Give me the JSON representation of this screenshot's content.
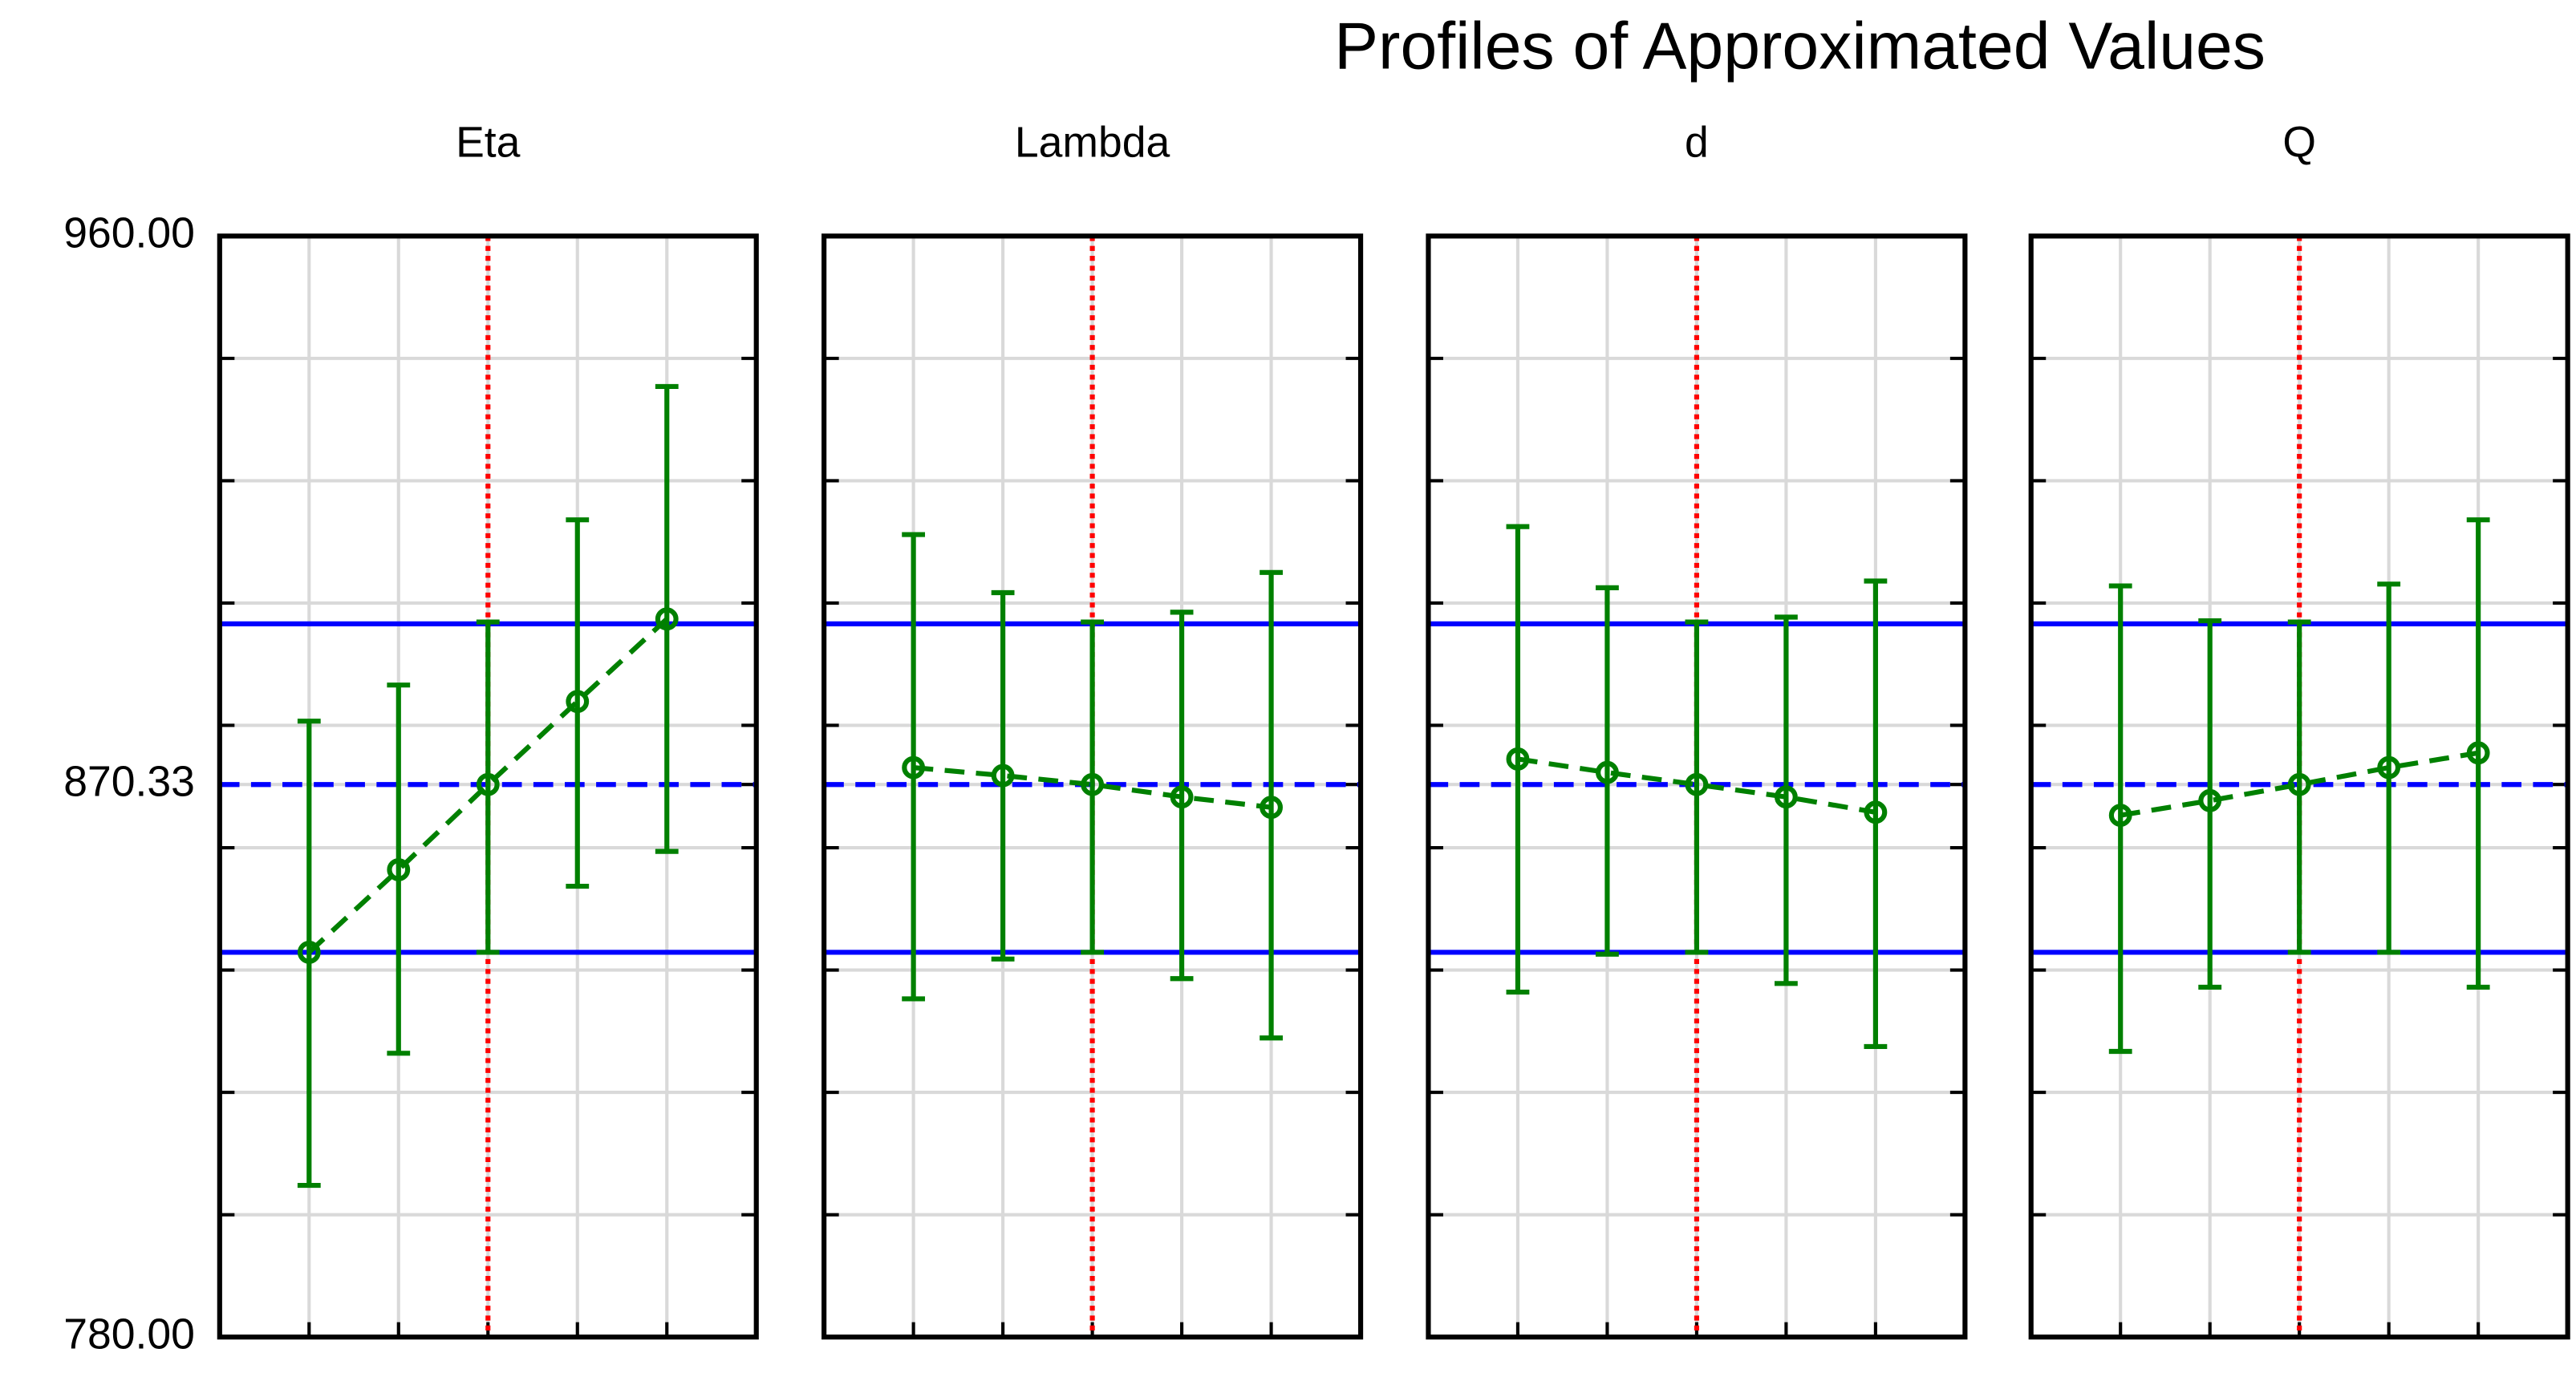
{
  "title": "Profiles of Approximated Values",
  "chart_data": {
    "type": "line",
    "ylim": [
      780,
      960
    ],
    "yticks": [
      {
        "value": 960,
        "label": "960.00"
      },
      {
        "value": 870.33,
        "label": "870.33"
      },
      {
        "value": 780,
        "label": "780.00"
      }
    ],
    "yminor": [
      940,
      920,
      900,
      880,
      860,
      840,
      820,
      800
    ],
    "xlim": [
      0,
      6
    ],
    "grid": true,
    "color": "#008000",
    "reference_color": "#0000ff",
    "current_color": "#ff0000",
    "panels": [
      {
        "title": "Eta",
        "x": [
          1,
          2,
          3,
          4,
          5
        ],
        "categories": [
          null,
          null,
          null,
          null,
          null
        ],
        "values": [
          842.9,
          856.4,
          870.33,
          883.9,
          897.4
        ],
        "lower": [
          804.8,
          826.4,
          842.9,
          853.7,
          859.4
        ],
        "upper": [
          880.7,
          886.6,
          896.9,
          913.6,
          935.4
        ],
        "current_x": 3,
        "mean": 870.33,
        "limits": [
          842.9,
          896.6
        ]
      },
      {
        "title": "Lambda",
        "x": [
          1,
          2,
          3,
          4,
          5
        ],
        "categories": [
          null,
          null,
          null,
          null,
          null
        ],
        "values": [
          873.1,
          871.8,
          870.33,
          868.3,
          866.6
        ],
        "lower": [
          835.3,
          841.8,
          842.9,
          838.6,
          828.9
        ],
        "upper": [
          911.2,
          901.7,
          896.9,
          898.5,
          905.0
        ],
        "current_x": 3,
        "mean": 870.33,
        "limits": [
          842.9,
          896.6
        ]
      },
      {
        "title": "d",
        "x": [
          1,
          2,
          3,
          4,
          5
        ],
        "categories": [
          null,
          null,
          null,
          null,
          null
        ],
        "values": [
          874.5,
          872.3,
          870.33,
          868.3,
          865.8
        ],
        "lower": [
          836.4,
          842.6,
          842.9,
          837.8,
          827.5
        ],
        "upper": [
          912.5,
          902.5,
          896.9,
          897.7,
          903.6
        ],
        "current_x": 3,
        "mean": 870.33,
        "limits": [
          842.9,
          896.6
        ]
      },
      {
        "title": "Q",
        "x": [
          1,
          2,
          3,
          4,
          5
        ],
        "categories": [
          null,
          null,
          null,
          null,
          null
        ],
        "values": [
          865.3,
          867.7,
          870.33,
          873.1,
          875.5
        ],
        "lower": [
          826.7,
          837.2,
          842.9,
          842.9,
          837.2
        ],
        "upper": [
          902.8,
          897.1,
          896.9,
          903.1,
          913.6
        ],
        "current_x": 3,
        "mean": 870.33,
        "limits": [
          842.9,
          896.6
        ]
      }
    ]
  }
}
